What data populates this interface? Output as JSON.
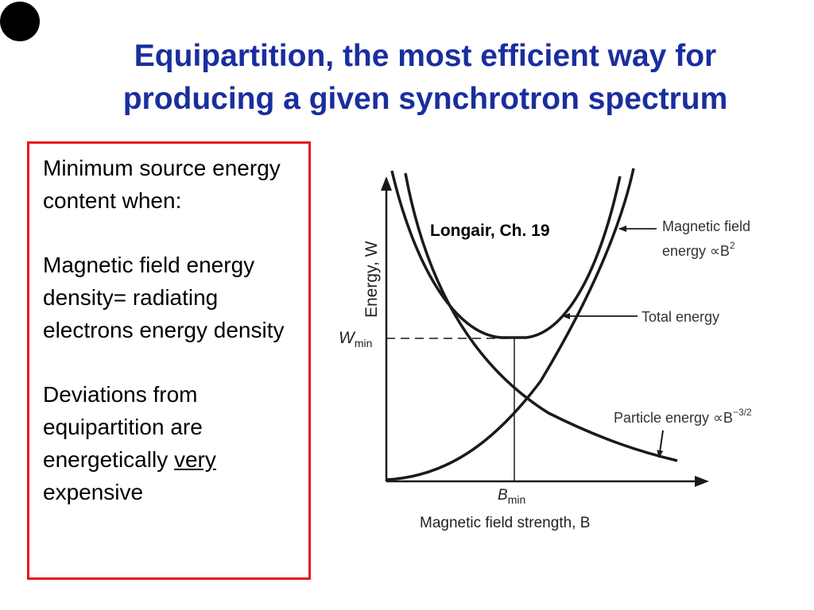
{
  "slide": {
    "title_lines": [
      "Equipartition, the most efficient  way for",
      "producing a given synchrotron spectrum"
    ],
    "paragraphs": {
      "p1": "Minimum source energy content when:",
      "p2": "Magnetic field energy density= radiating electrons energy density",
      "p3_before": "Deviations from equipartition are energetically ",
      "p3_underlined": "very",
      "p3_after": " expensive"
    },
    "colors": {
      "title": "#1a2e9e",
      "box_border": "#e21b1b",
      "text": "#000000"
    }
  },
  "diagram": {
    "citation": "Longair, Ch. 19",
    "y_axis_label": "Energy, W",
    "x_axis_label": "Magnetic field strength, B",
    "wmin_label": "W",
    "wmin_sub": "min",
    "bmin_label": "B",
    "bmin_sub": "min",
    "magnetic_label_line1": "Magnetic field",
    "magnetic_label_line2": "energy ∝B",
    "magnetic_label_sup": "2",
    "total_label": "Total energy",
    "particle_label": "Particle energy ∝B",
    "particle_label_sup": "−3/2"
  }
}
